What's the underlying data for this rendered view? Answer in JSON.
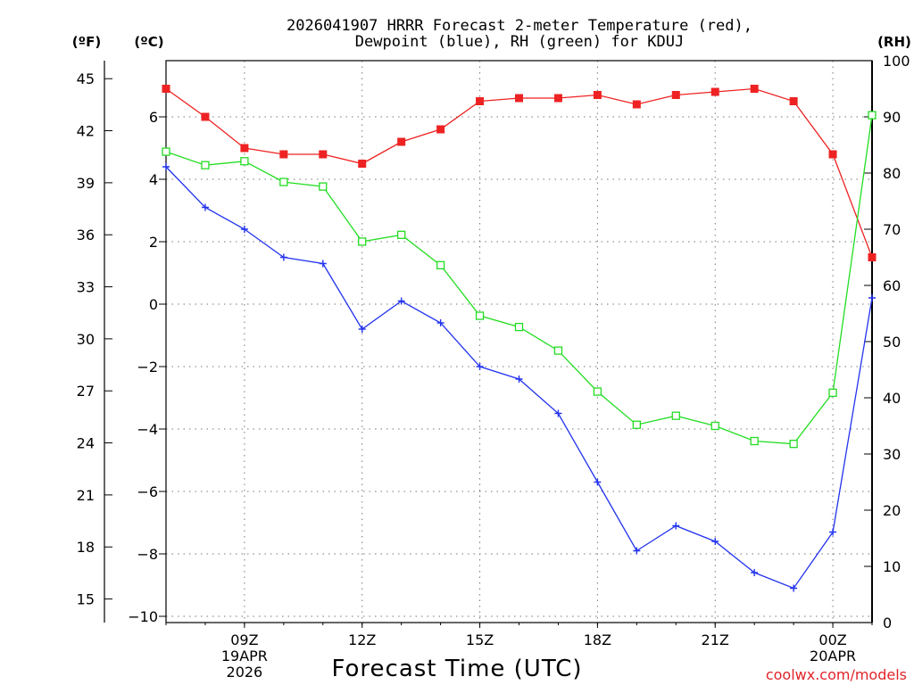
{
  "chart_data": {
    "type": "line",
    "title_lines": [
      "2026041907 HRRR Forecast 2-meter Temperature (red),",
      "Dewpoint (blue), RH (green) for KDUJ"
    ],
    "xlabel": "Forecast Time (UTC)",
    "credit": "coolwx.com/models",
    "units": {
      "fahrenheit": "(ºF)",
      "celsius": "(ºC)",
      "rh": "(RH)"
    },
    "x_range": [
      7,
      25
    ],
    "x_ticks": [
      {
        "x": 9,
        "lines": [
          "09Z",
          "19APR",
          "2026"
        ]
      },
      {
        "x": 12,
        "lines": [
          "12Z"
        ]
      },
      {
        "x": 15,
        "lines": [
          "15Z"
        ]
      },
      {
        "x": 18,
        "lines": [
          "18Z"
        ]
      },
      {
        "x": 21,
        "lines": [
          "21Z"
        ]
      },
      {
        "x": 24,
        "lines": [
          "00Z",
          "20APR"
        ]
      }
    ],
    "x_hours": [
      7,
      8,
      9,
      10,
      11,
      12,
      13,
      14,
      15,
      16,
      17,
      18,
      19,
      20,
      21,
      22,
      23,
      24,
      25
    ],
    "celsius_axis": {
      "range": [
        -10.2,
        7.8
      ],
      "ticks": [
        6,
        4,
        2,
        0,
        -2,
        -4,
        -6,
        -8,
        -10
      ],
      "tick_labels": [
        "6",
        "4",
        "2",
        "0",
        "−2",
        "−4",
        "−6",
        "−8",
        "−10"
      ]
    },
    "fahrenheit_axis": {
      "ticks": [
        45,
        42,
        39,
        36,
        33,
        30,
        27,
        24,
        21,
        18,
        15
      ],
      "tick_labels": [
        "45",
        "42",
        "39",
        "36",
        "33",
        "30",
        "27",
        "24",
        "21",
        "18",
        "15"
      ]
    },
    "rh_axis": {
      "range": [
        0,
        100
      ],
      "ticks": [
        100,
        90,
        80,
        70,
        60,
        50,
        40,
        30,
        20,
        10,
        0
      ],
      "tick_labels": [
        "100",
        "90",
        "80",
        "70",
        "60",
        "50",
        "40",
        "30",
        "20",
        "10",
        "0"
      ]
    },
    "series": [
      {
        "name": "2-meter Temperature",
        "axis": "celsius",
        "color": "#ee2222",
        "marker": "filled-square",
        "values": [
          6.9,
          6.0,
          5.0,
          4.8,
          4.8,
          4.5,
          5.2,
          5.6,
          6.5,
          6.6,
          6.6,
          6.7,
          6.4,
          6.7,
          6.8,
          6.9,
          6.5,
          4.8,
          1.5
        ]
      },
      {
        "name": "Dewpoint",
        "axis": "celsius",
        "color": "#2233ee",
        "marker": "plus",
        "values": [
          4.4,
          3.1,
          2.4,
          1.5,
          1.3,
          -0.8,
          0.1,
          -0.6,
          -2.0,
          -2.4,
          -3.5,
          -5.7,
          -7.9,
          -7.1,
          -7.6,
          -8.6,
          -9.1,
          -7.3,
          0.2
        ]
      },
      {
        "name": "RH",
        "axis": "rh",
        "color": "#22dd22",
        "marker": "open-square",
        "values": [
          83.8,
          81.4,
          82.1,
          78.4,
          77.6,
          67.8,
          69.0,
          63.6,
          54.6,
          52.6,
          48.4,
          41.1,
          35.2,
          36.8,
          35.0,
          32.3,
          31.8,
          40.9,
          90.3
        ]
      }
    ]
  }
}
